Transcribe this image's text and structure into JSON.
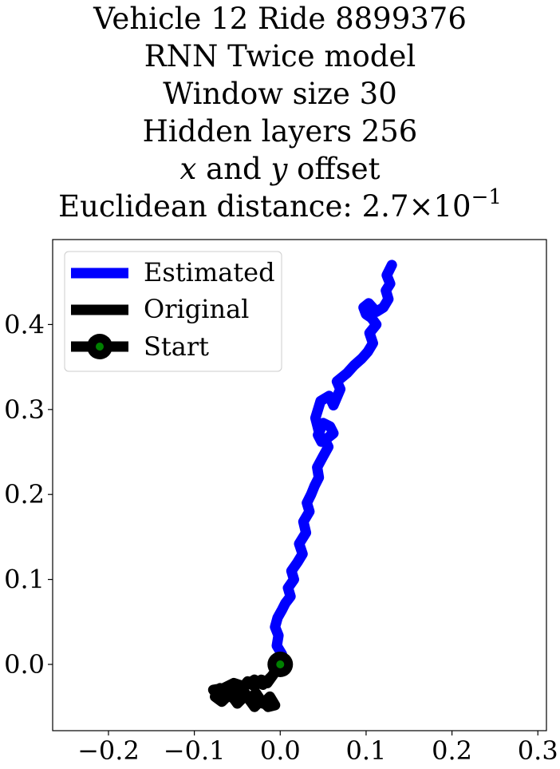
{
  "chart_data": {
    "type": "line",
    "title_lines": [
      "Vehicle 12 Ride 8899376",
      "RNN Twice model",
      "Window size 30",
      "Hidden layers 256"
    ],
    "offset_line": {
      "x_var": "x",
      "and_word": "and",
      "y_var": "y",
      "suffix": "offset"
    },
    "distance_line": {
      "prefix": "Euclidean distance:",
      "mantissa": "2.7",
      "times": "×",
      "base": "10",
      "exponent": "−1"
    },
    "xlim": [
      -0.265,
      0.31
    ],
    "ylim": [
      -0.078,
      0.5
    ],
    "xticks": [
      -0.2,
      -0.1,
      0.0,
      0.1,
      0.2,
      0.3
    ],
    "xtick_labels": [
      "−0.2",
      "−0.1",
      "0.0",
      "0.1",
      "0.2",
      "0.3"
    ],
    "yticks": [
      0.0,
      0.1,
      0.2,
      0.3,
      0.4
    ],
    "ytick_labels": [
      "0.0",
      "0.1",
      "0.2",
      "0.3",
      "0.4"
    ],
    "legend": {
      "position": "upper-left",
      "entries": [
        "Estimated",
        "Original",
        "Start"
      ]
    },
    "colors": {
      "estimated": "#0000ff",
      "original": "#000000",
      "start_edge": "#000000",
      "start_fill": "#008000"
    },
    "series": [
      {
        "name": "Estimated",
        "x": [
          0.0,
          0.002,
          -0.004,
          -0.002,
          -0.006,
          -0.003,
          0.002,
          0.006,
          0.012,
          0.009,
          0.016,
          0.013,
          0.02,
          0.026,
          0.022,
          0.03,
          0.027,
          0.034,
          0.031,
          0.036,
          0.04,
          0.045,
          0.043,
          0.05,
          0.056,
          0.052,
          0.062,
          0.058,
          0.05,
          0.044,
          0.048,
          0.041,
          0.047,
          0.057,
          0.062,
          0.07,
          0.066,
          0.078,
          0.086,
          0.095,
          0.102,
          0.108,
          0.104,
          0.112,
          0.106,
          0.1,
          0.097,
          0.103,
          0.112,
          0.12,
          0.126,
          0.123,
          0.128,
          0.124,
          0.13
        ],
        "y": [
          0.0,
          0.012,
          0.022,
          0.034,
          0.044,
          0.055,
          0.064,
          0.072,
          0.08,
          0.09,
          0.1,
          0.11,
          0.12,
          0.13,
          0.142,
          0.155,
          0.168,
          0.18,
          0.19,
          0.2,
          0.21,
          0.22,
          0.232,
          0.245,
          0.256,
          0.264,
          0.272,
          0.28,
          0.284,
          0.27,
          0.262,
          0.29,
          0.31,
          0.316,
          0.305,
          0.324,
          0.333,
          0.343,
          0.352,
          0.36,
          0.368,
          0.378,
          0.39,
          0.4,
          0.408,
          0.412,
          0.42,
          0.425,
          0.415,
          0.42,
          0.43,
          0.44,
          0.448,
          0.458,
          0.47
        ]
      },
      {
        "name": "Original",
        "x": [
          0.0,
          -0.008,
          -0.015,
          -0.022,
          -0.03,
          -0.038,
          -0.046,
          -0.055,
          -0.062,
          -0.07,
          -0.076,
          -0.068,
          -0.06,
          -0.052,
          -0.044,
          -0.036,
          -0.028,
          -0.02,
          -0.012,
          -0.006,
          -0.014,
          -0.022,
          -0.03,
          -0.04,
          -0.05,
          -0.06,
          -0.07,
          -0.078,
          -0.066,
          -0.054,
          -0.042,
          -0.03,
          -0.02,
          -0.01,
          0.0
        ],
        "y": [
          0.0,
          -0.012,
          -0.022,
          -0.018,
          -0.026,
          -0.02,
          -0.03,
          -0.024,
          -0.034,
          -0.028,
          -0.038,
          -0.044,
          -0.036,
          -0.042,
          -0.03,
          -0.04,
          -0.034,
          -0.046,
          -0.038,
          -0.048,
          -0.05,
          -0.042,
          -0.05,
          -0.036,
          -0.046,
          -0.032,
          -0.04,
          -0.03,
          -0.028,
          -0.022,
          -0.026,
          -0.018,
          -0.024,
          -0.014,
          0.0
        ]
      }
    ],
    "start": {
      "x": 0.0,
      "y": 0.0
    }
  }
}
